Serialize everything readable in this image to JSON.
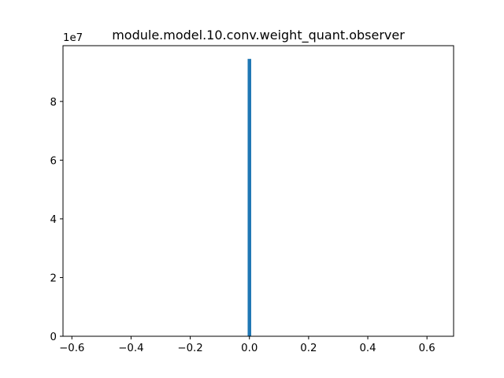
{
  "chart_data": {
    "type": "bar",
    "title": "module.model.10.conv.weight_quant.observer",
    "xlabel": "",
    "ylabel": "",
    "y_offset_label": "1e7",
    "xlim": [
      -0.63,
      0.69
    ],
    "ylim": [
      0,
      9.9
    ],
    "xticks": [
      -0.6,
      -0.4,
      -0.2,
      0.0,
      0.2,
      0.4,
      0.6
    ],
    "xtick_labels": [
      "−0.6",
      "−0.4",
      "−0.2",
      "0.0",
      "0.2",
      "0.4",
      "0.6"
    ],
    "yticks": [
      0,
      2,
      4,
      6,
      8
    ],
    "ytick_labels": [
      "0",
      "2",
      "4",
      "6",
      "8"
    ],
    "bars": [
      {
        "x_start": -0.006,
        "x_end": 0.006,
        "value": 9.45
      }
    ],
    "color": "#1f77b4",
    "grid": false,
    "legend": "none"
  }
}
